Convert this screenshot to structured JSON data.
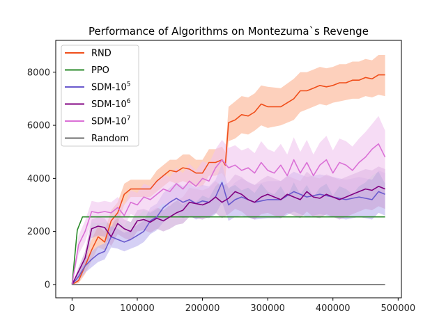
{
  "chart_data": {
    "type": "line",
    "title": "Performance of Algorithms on Montezuma`s Revenge",
    "xlabel": "",
    "ylabel": "",
    "xlim": [
      -25000,
      505000
    ],
    "ylim": [
      -500,
      9200
    ],
    "xticks": [
      0,
      100000,
      200000,
      300000,
      400000,
      500000
    ],
    "xtick_labels": [
      "0",
      "100000",
      "200000",
      "300000",
      "400000",
      "500000"
    ],
    "yticks": [
      0,
      2000,
      4000,
      6000,
      8000
    ],
    "ytick_labels": [
      "0",
      "2000",
      "4000",
      "6000",
      "8000"
    ],
    "grid": false,
    "legend_position": "top-left",
    "series": [
      {
        "name": "RND",
        "label_main": "RND",
        "label_sup": "",
        "color": "#f04e1a",
        "band_color": "#fbb08f",
        "x": [
          0,
          10000,
          20000,
          30000,
          40000,
          50000,
          60000,
          70000,
          80000,
          90000,
          100000,
          120000,
          130000,
          140000,
          150000,
          160000,
          170000,
          180000,
          190000,
          200000,
          210000,
          220000,
          230000,
          235000,
          240000,
          250000,
          260000,
          270000,
          280000,
          290000,
          300000,
          320000,
          340000,
          350000,
          360000,
          370000,
          380000,
          390000,
          400000,
          410000,
          420000,
          430000,
          440000,
          450000,
          460000,
          470000,
          480000
        ],
        "y": [
          0,
          150,
          700,
          1300,
          1800,
          1600,
          2400,
          2700,
          3400,
          3600,
          3600,
          3600,
          3900,
          4100,
          4300,
          4250,
          4400,
          4350,
          4200,
          4200,
          4600,
          4600,
          4700,
          4500,
          6100,
          6200,
          6400,
          6350,
          6500,
          6800,
          6700,
          6700,
          7000,
          7300,
          7300,
          7400,
          7500,
          7450,
          7500,
          7600,
          7600,
          7700,
          7700,
          7800,
          7750,
          7900,
          7900
        ],
        "lower": [
          0,
          50,
          400,
          900,
          1400,
          1300,
          2000,
          2300,
          3000,
          3300,
          3300,
          3300,
          3500,
          3700,
          3900,
          3800,
          3900,
          3800,
          3700,
          3700,
          4100,
          4100,
          4200,
          4000,
          5400,
          5500,
          5700,
          5650,
          5800,
          6000,
          5900,
          6000,
          6200,
          6500,
          6600,
          6700,
          6800,
          6750,
          6850,
          6900,
          6950,
          7000,
          7000,
          7100,
          7050,
          7150,
          7100
        ],
        "upper": [
          0,
          300,
          1000,
          1700,
          2200,
          2000,
          2800,
          3100,
          3800,
          3950,
          3950,
          3950,
          4300,
          4500,
          4700,
          4700,
          4900,
          4900,
          4700,
          4700,
          5100,
          5100,
          5200,
          5000,
          6700,
          6900,
          7100,
          7050,
          7200,
          7500,
          7450,
          7400,
          7750,
          8000,
          8000,
          8100,
          8200,
          8150,
          8200,
          8300,
          8300,
          8400,
          8400,
          8500,
          8450,
          8650,
          8650
        ]
      },
      {
        "name": "PPO",
        "label_main": "PPO",
        "label_sup": "",
        "color": "#2a8a2a",
        "band_color": "",
        "x": [
          0,
          8000,
          16000,
          480000
        ],
        "y": [
          0,
          2050,
          2550,
          2550
        ]
      },
      {
        "name": "SDM-10^5",
        "label_main": "SDM-10",
        "label_sup": "5",
        "color": "#6a5acd",
        "band_color": "#b9b0ee",
        "x": [
          0,
          10000,
          20000,
          30000,
          40000,
          50000,
          60000,
          70000,
          80000,
          90000,
          100000,
          110000,
          120000,
          130000,
          140000,
          150000,
          160000,
          170000,
          180000,
          190000,
          200000,
          210000,
          220000,
          230000,
          240000,
          250000,
          260000,
          280000,
          300000,
          320000,
          340000,
          360000,
          380000,
          400000,
          420000,
          440000,
          460000,
          470000,
          480000
        ],
        "y": [
          0,
          300,
          700,
          950,
          1150,
          1250,
          1800,
          1700,
          1600,
          1700,
          1850,
          2000,
          2400,
          2550,
          2900,
          3100,
          3250,
          3100,
          3200,
          3050,
          3150,
          3100,
          3300,
          3850,
          3000,
          3200,
          3300,
          3100,
          3200,
          3200,
          3500,
          3300,
          3400,
          3300,
          3200,
          3300,
          3200,
          3500,
          3400
        ],
        "lower": [
          0,
          150,
          450,
          650,
          850,
          950,
          1400,
          1350,
          1250,
          1350,
          1450,
          1600,
          1900,
          2050,
          2350,
          2550,
          2650,
          2500,
          2600,
          2450,
          2550,
          2500,
          2650,
          3100,
          2400,
          2550,
          2600,
          2450,
          2500,
          2500,
          2750,
          2550,
          2650,
          2550,
          2450,
          2550,
          2450,
          2700,
          2600
        ],
        "upper": [
          0,
          450,
          950,
          1250,
          1450,
          1550,
          2200,
          2100,
          1950,
          2050,
          2250,
          2400,
          2900,
          3050,
          3450,
          3650,
          3850,
          3700,
          3800,
          3650,
          3750,
          3700,
          3950,
          4550,
          3600,
          3850,
          4000,
          3750,
          3900,
          3900,
          4250,
          4050,
          4150,
          4050,
          3950,
          4050,
          3950,
          4300,
          4200
        ]
      },
      {
        "name": "SDM-10^6",
        "label_main": "SDM-10",
        "label_sup": "6",
        "color": "#800080",
        "band_color": "#c9a3d6",
        "x": [
          0,
          10000,
          20000,
          30000,
          40000,
          50000,
          60000,
          70000,
          80000,
          90000,
          100000,
          110000,
          120000,
          130000,
          140000,
          150000,
          160000,
          170000,
          180000,
          190000,
          200000,
          210000,
          220000,
          230000,
          240000,
          250000,
          260000,
          270000,
          280000,
          290000,
          300000,
          310000,
          320000,
          330000,
          340000,
          350000,
          360000,
          370000,
          380000,
          390000,
          400000,
          410000,
          420000,
          430000,
          440000,
          450000,
          460000,
          470000,
          480000
        ],
        "y": [
          0,
          500,
          1000,
          2100,
          2200,
          2150,
          1800,
          2300,
          2100,
          2000,
          2400,
          2450,
          2350,
          2500,
          2400,
          2550,
          2700,
          2800,
          3100,
          3050,
          3000,
          3100,
          3300,
          3100,
          3250,
          3500,
          3400,
          3200,
          3100,
          3300,
          3400,
          3300,
          3200,
          3400,
          3300,
          3200,
          3500,
          3300,
          3250,
          3400,
          3300,
          3200,
          3300,
          3400,
          3500,
          3600,
          3550,
          3700,
          3600
        ],
        "lower": [
          0,
          350,
          750,
          1750,
          1850,
          1800,
          1450,
          1900,
          1750,
          1650,
          2000,
          2050,
          1950,
          2100,
          2000,
          2100,
          2250,
          2300,
          2550,
          2500,
          2450,
          2550,
          2700,
          2500,
          2650,
          2850,
          2750,
          2550,
          2450,
          2650,
          2700,
          2600,
          2500,
          2700,
          2600,
          2500,
          2750,
          2550,
          2500,
          2650,
          2550,
          2450,
          2550,
          2650,
          2750,
          2850,
          2800,
          2950,
          2850
        ],
        "upper": [
          0,
          650,
          1250,
          2450,
          2550,
          2500,
          2150,
          2700,
          2450,
          2350,
          2800,
          2850,
          2750,
          2900,
          2800,
          3000,
          3150,
          3300,
          3650,
          3600,
          3550,
          3650,
          3900,
          3700,
          3850,
          4150,
          4050,
          3850,
          3750,
          3950,
          4100,
          4000,
          3900,
          4100,
          4000,
          3900,
          4250,
          4050,
          4000,
          4150,
          4050,
          3950,
          4050,
          4150,
          4250,
          4350,
          4300,
          4450,
          4350
        ]
      },
      {
        "name": "SDM-10^7",
        "label_main": "SDM-10",
        "label_sup": "7",
        "color": "#da70d6",
        "band_color": "#f0c4ee",
        "x": [
          0,
          10000,
          20000,
          30000,
          40000,
          50000,
          60000,
          70000,
          80000,
          90000,
          100000,
          110000,
          120000,
          130000,
          140000,
          150000,
          160000,
          170000,
          180000,
          190000,
          200000,
          210000,
          220000,
          230000,
          240000,
          250000,
          260000,
          270000,
          280000,
          290000,
          300000,
          310000,
          320000,
          330000,
          340000,
          350000,
          360000,
          370000,
          380000,
          390000,
          400000,
          410000,
          420000,
          430000,
          440000,
          450000,
          460000,
          470000,
          480000
        ],
        "y": [
          0,
          1500,
          2000,
          2750,
          2700,
          2750,
          2700,
          2900,
          2600,
          3100,
          3000,
          3300,
          3200,
          3400,
          3600,
          3500,
          3800,
          3600,
          3900,
          3700,
          4000,
          3900,
          4400,
          4700,
          4400,
          4500,
          4300,
          4400,
          4200,
          4600,
          4300,
          4200,
          4500,
          4100,
          4700,
          4200,
          4600,
          4100,
          4500,
          4700,
          4200,
          4600,
          4500,
          4300,
          4600,
          4800,
          5100,
          5300,
          4800
        ],
        "lower": [
          0,
          1150,
          1600,
          2350,
          2300,
          2350,
          2300,
          2500,
          2200,
          2650,
          2550,
          2800,
          2700,
          2850,
          3050,
          2950,
          3200,
          3000,
          3250,
          3100,
          3350,
          3250,
          3700,
          3950,
          3650,
          3750,
          3550,
          3650,
          3450,
          3800,
          3500,
          3400,
          3700,
          3300,
          3850,
          3400,
          3750,
          3300,
          3650,
          3800,
          3350,
          3700,
          3600,
          3400,
          3700,
          3850,
          4100,
          4250,
          3800
        ],
        "upper": [
          0,
          1850,
          2400,
          3150,
          3100,
          3150,
          3100,
          3300,
          3000,
          3550,
          3450,
          3800,
          3700,
          3950,
          4150,
          4050,
          4400,
          4200,
          4550,
          4300,
          4650,
          4550,
          5100,
          5450,
          5150,
          5250,
          5050,
          5150,
          4950,
          5400,
          5100,
          5000,
          5300,
          4900,
          5550,
          5000,
          5450,
          4900,
          5350,
          5600,
          5050,
          5500,
          5400,
          5200,
          5500,
          5750,
          6050,
          6350,
          5800
        ]
      },
      {
        "name": "Random",
        "label_main": "Random",
        "label_sup": "",
        "color": "#6e6e6e",
        "band_color": "",
        "x": [
          0,
          480000
        ],
        "y": [
          0,
          0
        ]
      }
    ]
  }
}
